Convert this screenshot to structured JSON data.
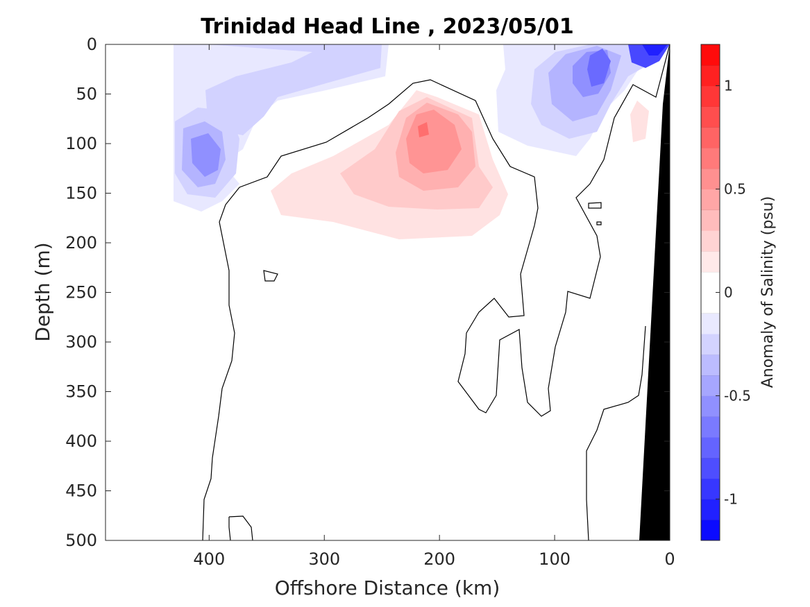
{
  "chart_data": {
    "type": "heatmap",
    "title": "Trinidad Head Line , 2023/05/01",
    "xlabel": "Offshore Distance (km)",
    "ylabel": "Depth (m)",
    "xlim": [
      490,
      0
    ],
    "ylim": [
      0,
      500
    ],
    "x_reversed": true,
    "y_reversed": true,
    "x_ticks": [
      400,
      300,
      200,
      100,
      0
    ],
    "y_ticks": [
      0,
      50,
      100,
      150,
      200,
      250,
      300,
      350,
      400,
      450,
      500
    ],
    "colorbar": {
      "label": "Anomaly of Salinity (psu)",
      "range": [
        -1.2,
        1.2
      ],
      "step": 0.1,
      "ticks": [
        1,
        0.5,
        0,
        -0.5,
        -1
      ],
      "tick_labels": [
        "1",
        "0.5",
        "0",
        "-0.5",
        "-1"
      ],
      "neg_color": "#0000ff",
      "pos_color": "#ff0000",
      "zero_color": "#ffffff"
    },
    "features": [
      {
        "label": "positive anomaly core",
        "x": 212,
        "y": 90,
        "value": 0.6
      },
      {
        "label": "negative anomaly core",
        "x": 415,
        "y": 112,
        "value": -0.4
      },
      {
        "label": "negative anomaly core",
        "x": 72,
        "y": 30,
        "value": -0.55
      },
      {
        "label": "negative anomaly core",
        "x": 12,
        "y": 3,
        "value": -0.9
      },
      {
        "label": "positive anomaly patch",
        "x": 28,
        "y": 80,
        "value": 0.15
      }
    ],
    "bathymetry_color": "#000000"
  }
}
